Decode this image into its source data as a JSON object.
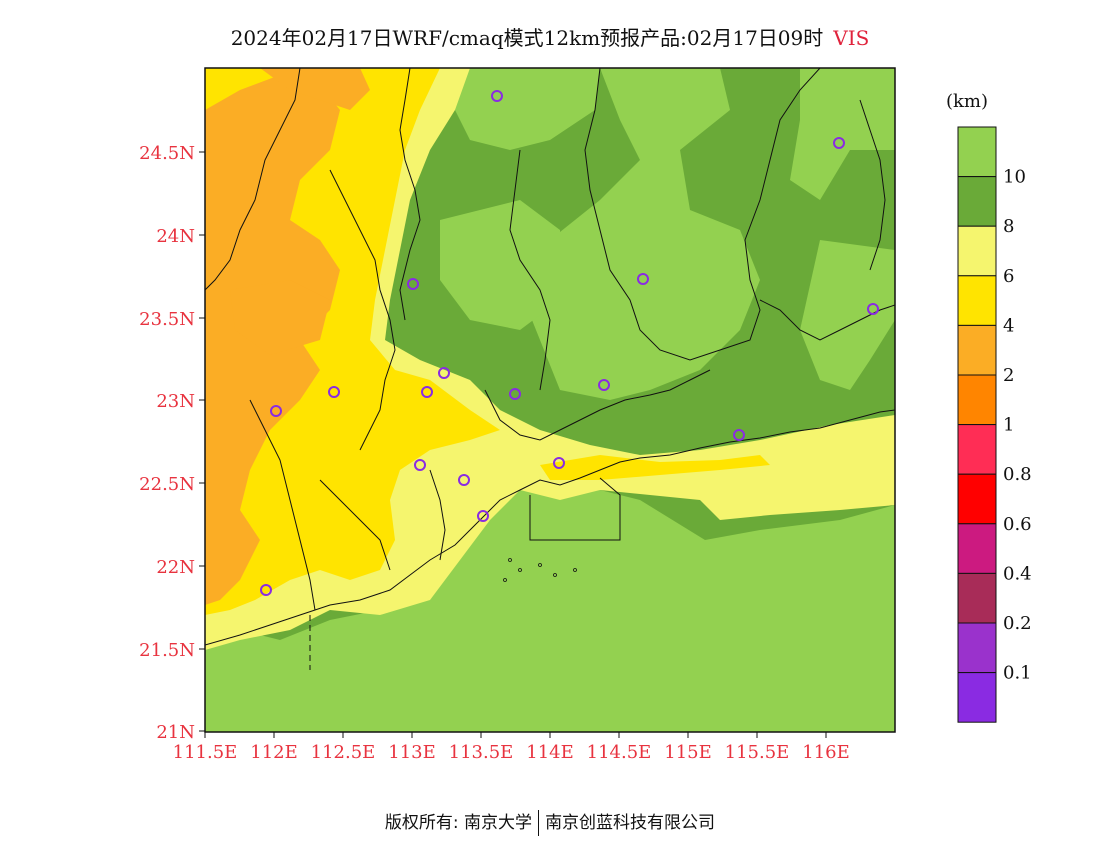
{
  "title": {
    "main": "2024年02月17日WRF/cmaq模式12km预报产品:02月17日09时",
    "variable": "VIS"
  },
  "map": {
    "lat_labels": [
      "24.5N",
      "24N",
      "23.5N",
      "23N",
      "22.5N",
      "22N",
      "21.5N",
      "21N"
    ],
    "lon_labels": [
      "111.5E",
      "112E",
      "112.5E",
      "113E",
      "113.5E",
      "114E",
      "114.5E",
      "115E",
      "115.5E",
      "116E"
    ],
    "colors": {
      "sea": "#93d150",
      "land_vis_gt10": "#93d150",
      "vis_8_10": "#6aaa38",
      "vis_6_8": "#f5f56e",
      "vis_4_6": "#ffe400",
      "vis_2_4": "#fbad25",
      "station_marker": "#8a2be2"
    }
  },
  "colorbar": {
    "unit": "(km)",
    "levels": [
      {
        "label": "10",
        "color": "#93d150"
      },
      {
        "label": "8",
        "color": "#6aaa38"
      },
      {
        "label": "6",
        "color": "#f5f56e"
      },
      {
        "label": "4",
        "color": "#ffe400"
      },
      {
        "label": "2",
        "color": "#fbad25"
      },
      {
        "label": "1",
        "color": "#ff8500"
      },
      {
        "label": "0.8",
        "color": "#ff2d55"
      },
      {
        "label": "0.6",
        "color": "#ff0000"
      },
      {
        "label": "0.4",
        "color": "#cc1a80"
      },
      {
        "label": "0.2",
        "color": "#a82c58"
      },
      {
        "label": "0.1",
        "color": "#9a32cc"
      },
      {
        "label": "",
        "color": "#8a2be2"
      }
    ]
  },
  "footer": {
    "left": "版权所有: 南京大学",
    "right": "南京创蓝科技有限公司"
  }
}
